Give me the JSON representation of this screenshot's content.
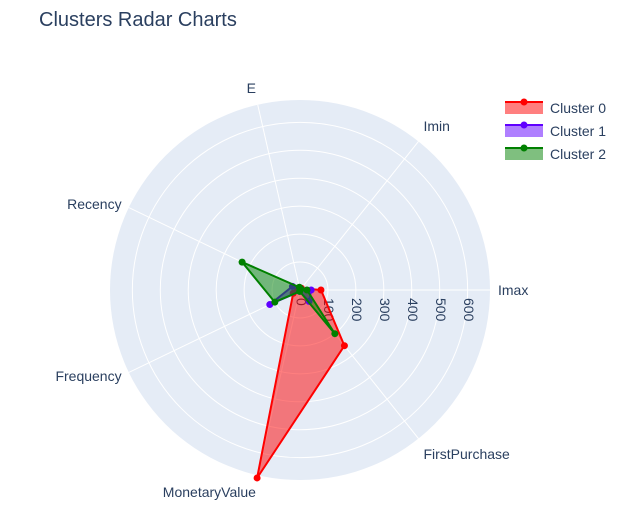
{
  "chart_data": {
    "type": "radar",
    "title": "Clusters Radar Charts",
    "theta": [
      "Imax",
      "Imin",
      "E",
      "Recency",
      "Frequency",
      "MonetaryValue",
      "FirstPurchase"
    ],
    "radial_ticks": [
      "0",
      "100",
      "200",
      "300",
      "400",
      "500",
      "600"
    ],
    "radial_range": [
      0,
      680
    ],
    "series": [
      {
        "name": "Cluster 0",
        "color": "#ff0000",
        "fill": true,
        "values": [
          75,
          8,
          5,
          10,
          27,
          690,
          255
        ]
      },
      {
        "name": "Cluster 1",
        "color": "#6000ff",
        "fill": true,
        "values": [
          40,
          5,
          5,
          30,
          120,
          5,
          52
        ]
      },
      {
        "name": "Cluster 2",
        "color": "#008000",
        "fill": true,
        "values": [
          25,
          5,
          10,
          230,
          100,
          5,
          200
        ]
      }
    ],
    "legend_position": "top-right",
    "grid": true
  }
}
